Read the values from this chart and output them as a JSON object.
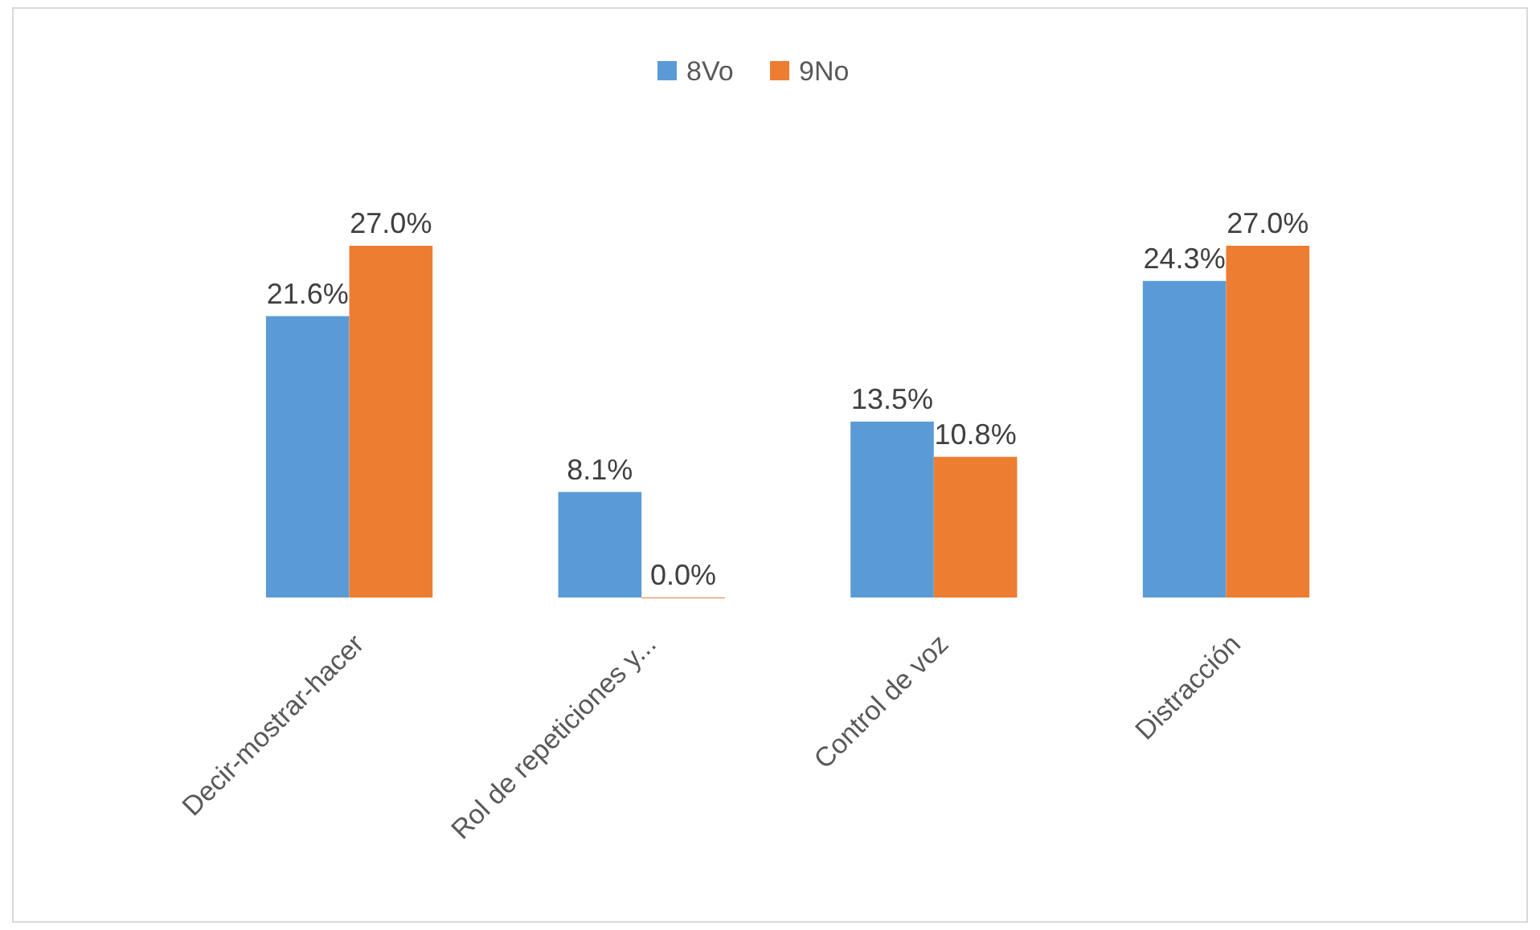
{
  "chart_data": {
    "type": "bar",
    "categories": [
      "Decir-mostrar-hacer",
      "Rol de repeticiones y...",
      "Control de voz",
      "Distracción"
    ],
    "series": [
      {
        "name": "8Vo",
        "color": "#5b9bd5",
        "values": [
          21.6,
          8.1,
          13.5,
          24.3
        ],
        "value_labels": [
          "21.6%",
          "8.1%",
          "13.5%",
          "24.3%"
        ]
      },
      {
        "name": "9No",
        "color": "#ed7d31",
        "values": [
          27.0,
          0.0,
          10.8,
          27.0
        ],
        "value_labels": [
          "27.0%",
          "0.0%",
          "10.8%",
          "27.0%"
        ]
      }
    ],
    "legend": "top"
  }
}
